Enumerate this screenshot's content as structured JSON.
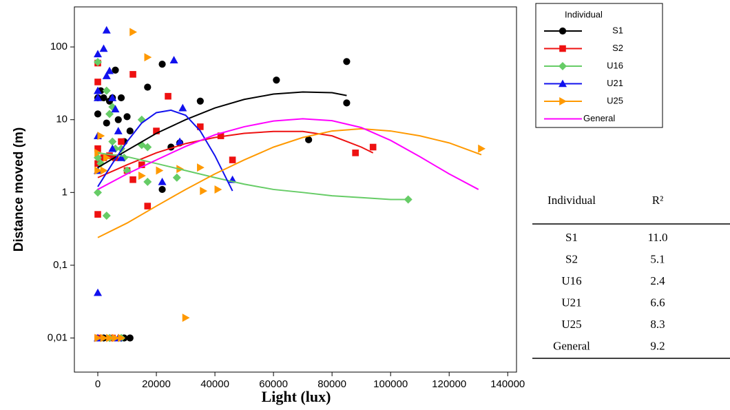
{
  "chart_data": {
    "type": "scatter",
    "x_label": "Light (lux)",
    "y_label": "Distance moved (m)",
    "log_y": true,
    "xlim": [
      -8000,
      143000
    ],
    "ylim": [
      0.0034,
      355
    ],
    "xticks": [
      0,
      20000,
      40000,
      60000,
      80000,
      100000,
      120000,
      140000
    ],
    "yticks": [
      {
        "value": 0.01,
        "label": "0,01"
      },
      {
        "value": 0.1,
        "label": "0,1"
      },
      1,
      10,
      100
    ],
    "legend_title": "Individual",
    "series": [
      {
        "name": "S1",
        "color": "#000000",
        "marker": "circle",
        "x": [
          0,
          0,
          1000,
          2000,
          3000,
          4000,
          5000,
          6000,
          7000,
          8000,
          9000,
          10000,
          11000,
          17000,
          22000,
          22000,
          25000,
          28000,
          35000,
          61000,
          72000,
          85000,
          85000,
          11000,
          9000,
          2000
        ],
        "values": [
          12,
          20,
          25,
          20,
          9,
          18,
          20,
          48,
          10,
          20,
          5,
          11,
          7,
          28,
          1.1,
          58,
          4.2,
          4.8,
          18,
          35,
          5.3,
          17,
          63,
          0.01,
          0.01,
          0.01
        ],
        "line_x": [
          0,
          10000,
          20000,
          30000,
          40000,
          50000,
          60000,
          70000,
          80000,
          85000
        ],
        "line_values": [
          2.2,
          3.8,
          6.5,
          10,
          14.5,
          19,
          22.5,
          24,
          23.5,
          21.5
        ]
      },
      {
        "name": "S2",
        "color": "#ee1111",
        "marker": "square",
        "x": [
          0,
          0,
          0,
          0,
          0,
          2000,
          4000,
          6000,
          8000,
          10000,
          12000,
          12000,
          15000,
          17000,
          20000,
          24000,
          35000,
          42000,
          46000,
          88000,
          94000,
          0,
          5000
        ],
        "values": [
          60,
          33,
          4,
          2.5,
          0.5,
          3,
          3.2,
          3,
          5,
          2,
          1.5,
          42,
          2.4,
          0.65,
          7,
          21,
          8,
          6,
          2.8,
          3.5,
          4.2,
          0.01,
          0.01
        ],
        "line_x": [
          0,
          10000,
          20000,
          30000,
          40000,
          50000,
          60000,
          70000,
          80000,
          90000,
          94000
        ],
        "line_values": [
          1.6,
          2.4,
          3.5,
          4.7,
          5.7,
          6.5,
          6.9,
          6.9,
          6,
          4.2,
          3.5
        ]
      },
      {
        "name": "U16",
        "color": "#66cc66",
        "marker": "diamond",
        "x": [
          0,
          0,
          0,
          1000,
          3000,
          3000,
          4000,
          5000,
          5000,
          6000,
          8000,
          9000,
          10000,
          15000,
          15000,
          17000,
          17000,
          27000,
          106000,
          8000,
          4000
        ],
        "values": [
          62,
          3,
          1,
          2.5,
          25,
          0.48,
          12,
          15,
          5,
          4,
          4,
          3,
          2,
          4.5,
          10,
          1.4,
          4.2,
          1.6,
          0.8,
          0.01,
          0.01
        ],
        "line_x": [
          0,
          10000,
          20000,
          30000,
          40000,
          50000,
          60000,
          70000,
          80000,
          90000,
          100000,
          106000
        ],
        "line_values": [
          3.5,
          3.1,
          2.5,
          2,
          1.6,
          1.3,
          1.1,
          1,
          0.9,
          0.85,
          0.8,
          0.8
        ]
      },
      {
        "name": "U21",
        "color": "#1111ee",
        "marker": "triangle",
        "x": [
          0,
          0,
          0,
          0,
          0,
          0,
          2000,
          3000,
          3000,
          4000,
          5000,
          5000,
          6000,
          7000,
          8000,
          22000,
          26000,
          28000,
          29000,
          46000,
          7000,
          0
        ],
        "values": [
          80,
          25,
          20,
          6,
          2,
          0.042,
          95,
          170,
          40,
          47,
          20,
          4,
          14,
          7,
          3,
          1.4,
          66,
          5,
          14.5,
          1.5,
          0.01,
          0.01
        ],
        "line_x": [
          0,
          5000,
          10000,
          15000,
          20000,
          25000,
          30000,
          35000,
          40000,
          46000
        ],
        "line_values": [
          1.2,
          2.5,
          5,
          9,
          12.5,
          13.5,
          11.5,
          7,
          3.2,
          1.05
        ]
      },
      {
        "name": "U25",
        "color": "#ff9900",
        "marker": "triangle-right",
        "x": [
          0,
          0,
          1000,
          2000,
          3000,
          12000,
          17000,
          15000,
          21000,
          28000,
          35000,
          36000,
          41000,
          30000,
          131000,
          0,
          2000,
          4000,
          6000,
          8000
        ],
        "values": [
          3.5,
          2,
          6,
          2,
          3,
          160,
          72,
          1.7,
          2,
          2.1,
          2.2,
          1.05,
          1.1,
          0.019,
          4,
          0.01,
          0.01,
          0.01,
          0.01,
          0.01
        ],
        "line_x": [
          0,
          10000,
          20000,
          30000,
          40000,
          50000,
          60000,
          70000,
          80000,
          90000,
          100000,
          110000,
          120000,
          131000
        ],
        "line_values": [
          0.24,
          0.38,
          0.65,
          1.1,
          1.8,
          2.8,
          4.2,
          5.7,
          7,
          7.5,
          7,
          6,
          4.8,
          3.3
        ]
      },
      {
        "name": "General",
        "color": "#ff00ff",
        "line_x": [
          0,
          10000,
          20000,
          30000,
          40000,
          50000,
          60000,
          70000,
          80000,
          90000,
          100000,
          110000,
          120000,
          130000
        ],
        "line_values": [
          1.1,
          1.8,
          2.8,
          4.3,
          6.2,
          8,
          9.6,
          10.3,
          9.7,
          7.8,
          5.2,
          3.1,
          1.8,
          1.1
        ]
      }
    ]
  },
  "table": {
    "header": [
      "Individual",
      "R²"
    ],
    "rows": [
      [
        "S1",
        "11.0"
      ],
      [
        "S2",
        "5.1"
      ],
      [
        "U16",
        "2.4"
      ],
      [
        "U21",
        "6.6"
      ],
      [
        "U25",
        "8.3"
      ],
      [
        "General",
        "9.2"
      ]
    ]
  }
}
